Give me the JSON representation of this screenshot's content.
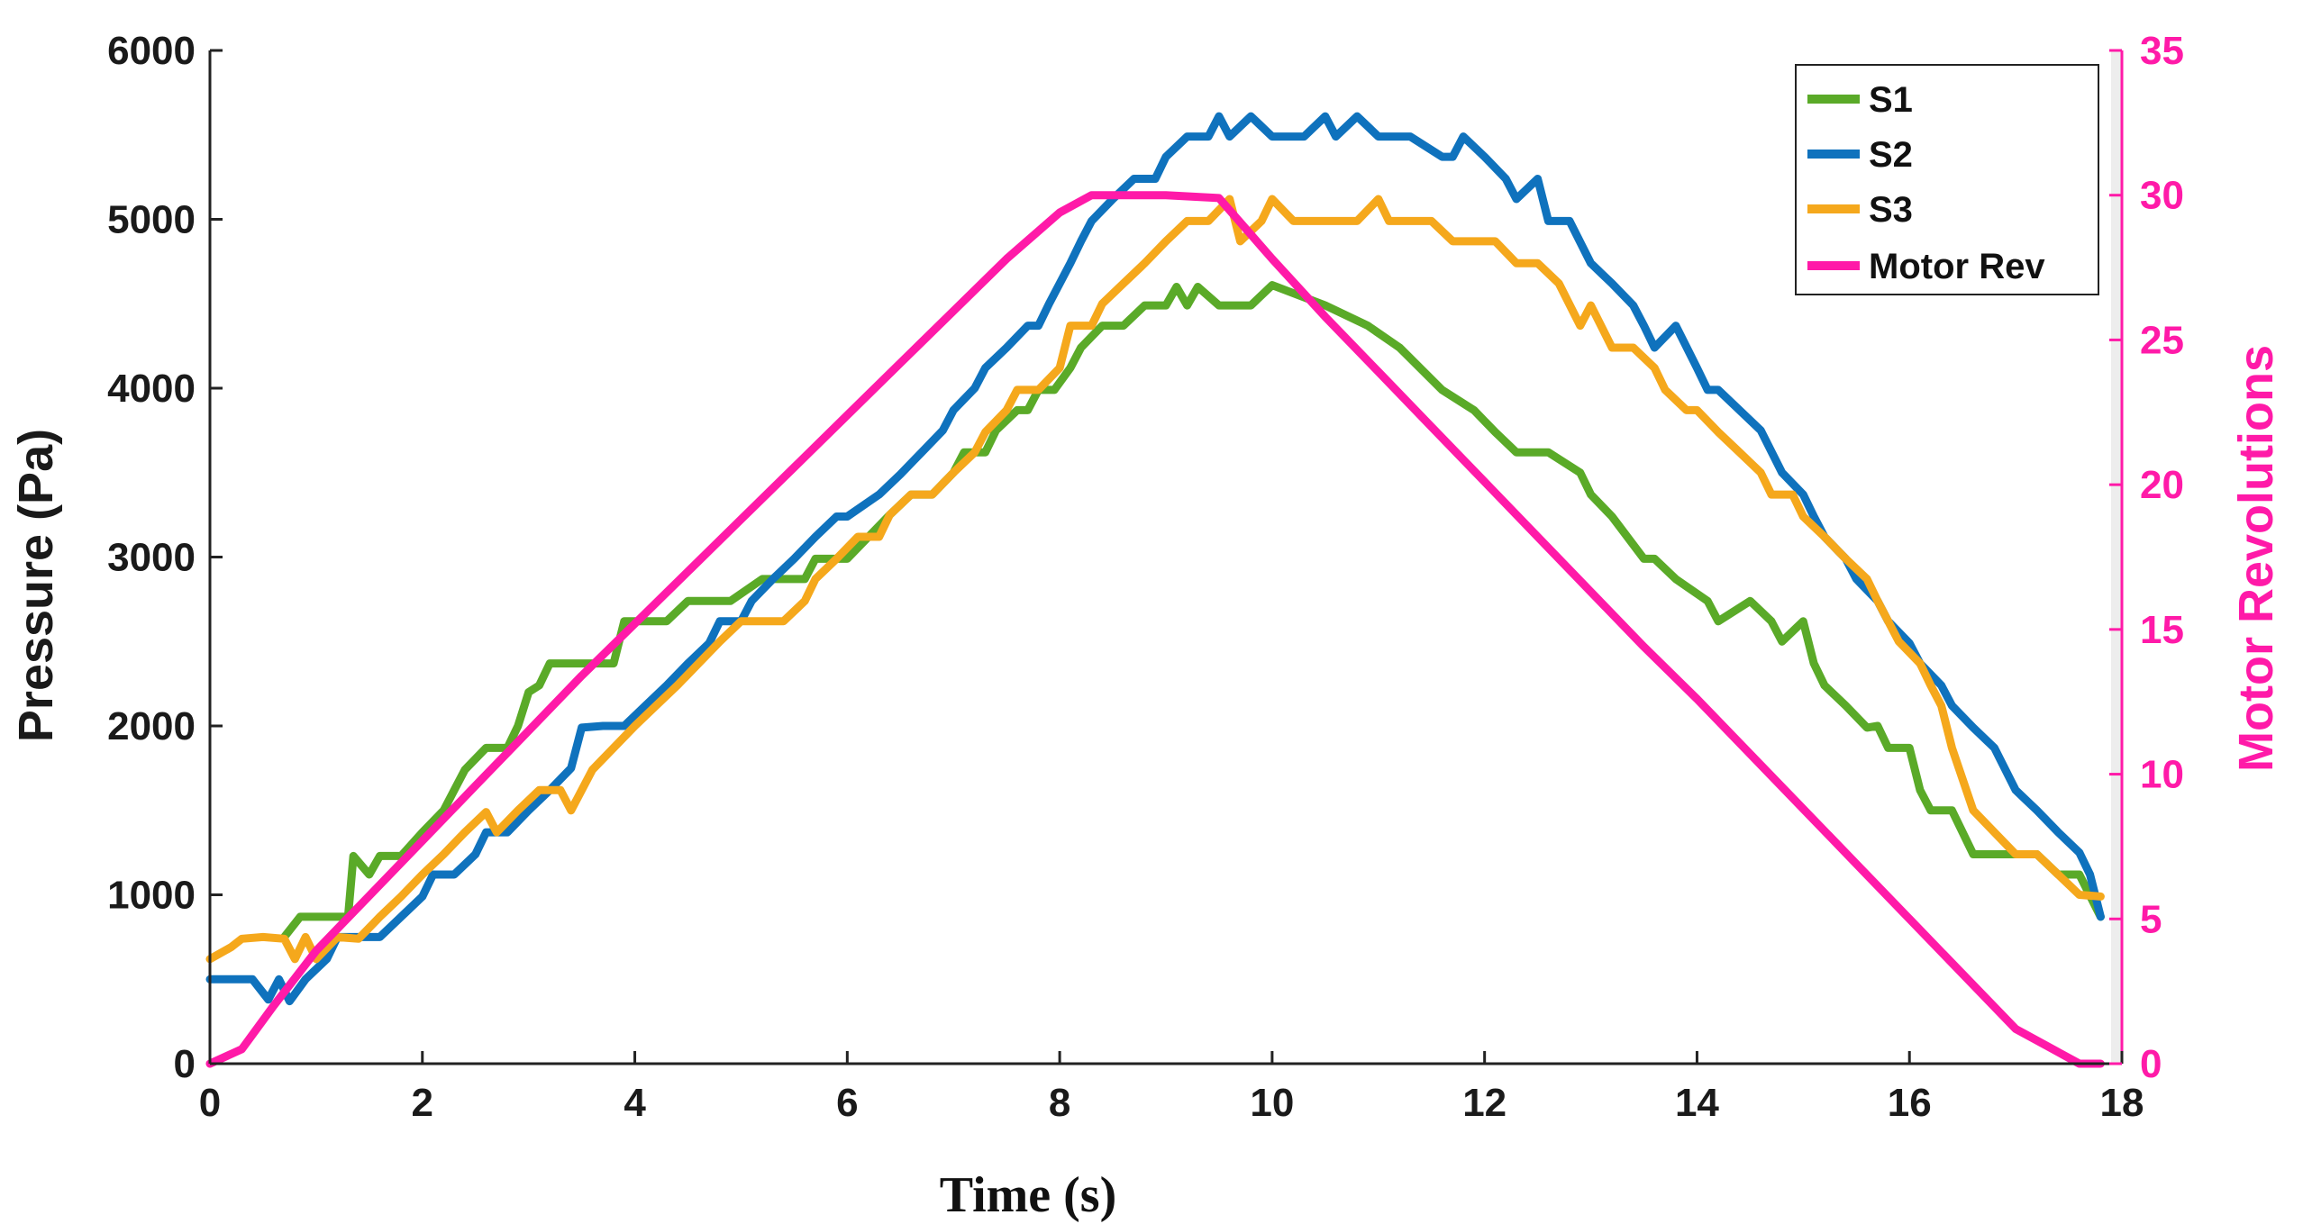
{
  "chart_data": {
    "type": "line",
    "title": "",
    "xlabel": "Time (s)",
    "ylabel": "Pressure (Pa)",
    "y2label": "Motor Revolutions",
    "xlim": [
      0,
      18
    ],
    "ylim": [
      0,
      6000
    ],
    "y2lim": [
      0,
      35
    ],
    "xticks": [
      0,
      2,
      4,
      6,
      8,
      10,
      12,
      14,
      16,
      18
    ],
    "yticks": [
      0,
      1000,
      2000,
      3000,
      4000,
      5000,
      6000
    ],
    "y2ticks": [
      0,
      5,
      10,
      15,
      20,
      25,
      30,
      35
    ],
    "legend_position": "top-right",
    "series": [
      {
        "name": "S1",
        "axis": "left",
        "color": "#5aaa28",
        "x": [
          0.7,
          0.85,
          1.3,
          1.35,
          1.5,
          1.6,
          1.8,
          2.0,
          2.2,
          2.3,
          2.4,
          2.6,
          2.8,
          2.9,
          3.0,
          3.1,
          3.2,
          3.3,
          3.6,
          3.8,
          3.9,
          4.3,
          4.5,
          4.9,
          5.2,
          5.6,
          5.7,
          6.0,
          6.2,
          6.4,
          6.6,
          6.8,
          7.0,
          7.1,
          7.3,
          7.4,
          7.6,
          7.7,
          7.8,
          7.95,
          8.1,
          8.2,
          8.4,
          8.6,
          8.8,
          9.0,
          9.1,
          9.2,
          9.3,
          9.5,
          9.8,
          10.0,
          10.5,
          10.9,
          11.2,
          11.6,
          11.9,
          12.1,
          12.3,
          12.6,
          12.9,
          13.0,
          13.2,
          13.5,
          13.6,
          13.8,
          14.1,
          14.2,
          14.5,
          14.7,
          14.8,
          15.0,
          15.1,
          15.2,
          15.4,
          15.6,
          15.7,
          15.8,
          16.0,
          16.1,
          16.2,
          16.4,
          16.5,
          16.6,
          16.8,
          17.2,
          17.4,
          17.6,
          17.8
        ],
        "y": [
          750,
          870,
          870,
          1230,
          1120,
          1230,
          1230,
          1370,
          1500,
          1620,
          1740,
          1870,
          1870,
          2000,
          2200,
          2240,
          2370,
          2370,
          2370,
          2370,
          2620,
          2620,
          2740,
          2740,
          2870,
          2870,
          2990,
          2990,
          3120,
          3250,
          3370,
          3370,
          3500,
          3620,
          3620,
          3750,
          3870,
          3870,
          3990,
          3990,
          4120,
          4240,
          4370,
          4370,
          4490,
          4490,
          4600,
          4490,
          4600,
          4490,
          4490,
          4610,
          4490,
          4370,
          4240,
          3990,
          3870,
          3740,
          3620,
          3620,
          3500,
          3370,
          3240,
          2990,
          2990,
          2870,
          2740,
          2620,
          2740,
          2620,
          2500,
          2620,
          2370,
          2240,
          2120,
          1990,
          2000,
          1870,
          1870,
          1620,
          1500,
          1500,
          1370,
          1240,
          1240,
          1240,
          1120,
          1120,
          870
        ]
      },
      {
        "name": "S2",
        "axis": "left",
        "color": "#0f72bd",
        "x": [
          0.0,
          0.3,
          0.4,
          0.55,
          0.65,
          0.75,
          0.9,
          1.1,
          1.2,
          1.4,
          1.6,
          1.8,
          2.0,
          2.1,
          2.3,
          2.5,
          2.6,
          2.8,
          3.0,
          3.2,
          3.4,
          3.5,
          3.7,
          3.9,
          4.1,
          4.3,
          4.5,
          4.7,
          4.8,
          5.0,
          5.1,
          5.3,
          5.5,
          5.7,
          5.9,
          6.0,
          6.3,
          6.5,
          6.7,
          6.9,
          7.0,
          7.2,
          7.3,
          7.5,
          7.7,
          7.8,
          7.9,
          8.0,
          8.1,
          8.2,
          8.3,
          8.5,
          8.7,
          8.9,
          9.0,
          9.2,
          9.4,
          9.5,
          9.6,
          9.8,
          10.0,
          10.3,
          10.5,
          10.6,
          10.8,
          11.0,
          11.3,
          11.6,
          11.7,
          11.8,
          12.0,
          12.2,
          12.3,
          12.5,
          12.6,
          12.8,
          13.0,
          13.2,
          13.4,
          13.5,
          13.6,
          13.8,
          14.0,
          14.1,
          14.2,
          14.4,
          14.6,
          14.8,
          15.0,
          15.1,
          15.2,
          15.4,
          15.5,
          15.7,
          15.8,
          16.0,
          16.1,
          16.3,
          16.4,
          16.6,
          16.8,
          17.0,
          17.2,
          17.4,
          17.6,
          17.7,
          17.8
        ],
        "y": [
          500,
          500,
          500,
          380,
          500,
          370,
          500,
          620,
          750,
          750,
          750,
          870,
          990,
          1120,
          1120,
          1240,
          1370,
          1370,
          1500,
          1620,
          1750,
          1990,
          2000,
          2000,
          2120,
          2240,
          2370,
          2490,
          2620,
          2620,
          2740,
          2870,
          2990,
          3120,
          3240,
          3240,
          3370,
          3490,
          3620,
          3750,
          3870,
          4000,
          4120,
          4240,
          4370,
          4370,
          4500,
          4620,
          4740,
          4870,
          4990,
          5120,
          5240,
          5240,
          5370,
          5490,
          5490,
          5610,
          5490,
          5610,
          5490,
          5490,
          5610,
          5490,
          5610,
          5490,
          5490,
          5370,
          5370,
          5490,
          5370,
          5240,
          5120,
          5240,
          4990,
          4990,
          4740,
          4620,
          4490,
          4370,
          4240,
          4370,
          4120,
          3990,
          3990,
          3870,
          3750,
          3500,
          3370,
          3240,
          3120,
          2990,
          2870,
          2740,
          2620,
          2490,
          2370,
          2240,
          2120,
          1990,
          1870,
          1620,
          1500,
          1370,
          1250,
          1120,
          870
        ]
      },
      {
        "name": "S3",
        "axis": "left",
        "color": "#f5a81c",
        "x": [
          0.0,
          0.2,
          0.3,
          0.5,
          0.7,
          0.8,
          0.9,
          1.0,
          1.2,
          1.4,
          1.6,
          1.8,
          2.0,
          2.2,
          2.4,
          2.6,
          2.7,
          2.9,
          3.1,
          3.3,
          3.4,
          3.6,
          3.8,
          4.0,
          4.2,
          4.4,
          4.6,
          4.8,
          5.0,
          5.2,
          5.4,
          5.6,
          5.7,
          5.9,
          6.1,
          6.3,
          6.4,
          6.6,
          6.8,
          7.0,
          7.2,
          7.3,
          7.5,
          7.6,
          7.8,
          8.0,
          8.1,
          8.3,
          8.4,
          8.6,
          8.8,
          9.0,
          9.2,
          9.4,
          9.6,
          9.7,
          9.9,
          10.0,
          10.2,
          10.4,
          10.6,
          10.8,
          11.0,
          11.1,
          11.3,
          11.5,
          11.7,
          11.9,
          12.1,
          12.3,
          12.5,
          12.7,
          12.9,
          13.0,
          13.2,
          13.4,
          13.6,
          13.7,
          13.9,
          14.0,
          14.2,
          14.4,
          14.6,
          14.7,
          14.9,
          15.0,
          15.2,
          15.4,
          15.6,
          15.7,
          15.9,
          16.1,
          16.2,
          16.3,
          16.4,
          16.6,
          16.8,
          17.0,
          17.2,
          17.4,
          17.6,
          17.8
        ],
        "y": [
          620,
          690,
          740,
          750,
          740,
          620,
          750,
          620,
          750,
          740,
          870,
          990,
          1120,
          1240,
          1370,
          1490,
          1370,
          1500,
          1620,
          1620,
          1500,
          1740,
          1870,
          2000,
          2120,
          2240,
          2370,
          2500,
          2620,
          2620,
          2620,
          2740,
          2870,
          2990,
          3120,
          3120,
          3250,
          3370,
          3370,
          3500,
          3620,
          3740,
          3870,
          3990,
          3990,
          4120,
          4370,
          4370,
          4500,
          4620,
          4740,
          4870,
          4990,
          4990,
          5120,
          4870,
          4990,
          5120,
          4990,
          4990,
          4990,
          4990,
          5120,
          4990,
          4990,
          4990,
          4870,
          4870,
          4870,
          4740,
          4740,
          4620,
          4370,
          4490,
          4240,
          4240,
          4120,
          3990,
          3870,
          3870,
          3740,
          3620,
          3500,
          3370,
          3370,
          3240,
          3120,
          2990,
          2870,
          2740,
          2500,
          2370,
          2240,
          2120,
          1870,
          1500,
          1370,
          1240,
          1240,
          1120,
          1000,
          990
        ]
      },
      {
        "name": "Motor Rev",
        "axis": "right",
        "color": "#ff1aa8",
        "x": [
          0.0,
          0.3,
          0.6,
          1.0,
          1.5,
          2.0,
          2.5,
          3.0,
          3.5,
          4.0,
          4.5,
          5.0,
          5.5,
          6.0,
          6.5,
          7.0,
          7.5,
          8.0,
          8.3,
          8.5,
          9.0,
          9.5,
          10.0,
          10.5,
          11.0,
          11.5,
          12.0,
          12.5,
          13.0,
          13.5,
          14.0,
          14.5,
          15.0,
          15.5,
          16.0,
          16.5,
          17.0,
          17.3,
          17.6,
          17.8
        ],
        "y": [
          0,
          0.5,
          2.0,
          3.9,
          5.8,
          7.7,
          9.6,
          11.5,
          13.4,
          15.2,
          17.0,
          18.8,
          20.6,
          22.4,
          24.2,
          26.0,
          27.8,
          29.4,
          30.0,
          30.0,
          30.0,
          29.9,
          27.8,
          25.8,
          23.9,
          22.0,
          20.1,
          18.2,
          16.3,
          14.4,
          12.6,
          10.7,
          8.8,
          6.9,
          5.0,
          3.1,
          1.2,
          0.6,
          0.0,
          0.0
        ]
      }
    ]
  }
}
